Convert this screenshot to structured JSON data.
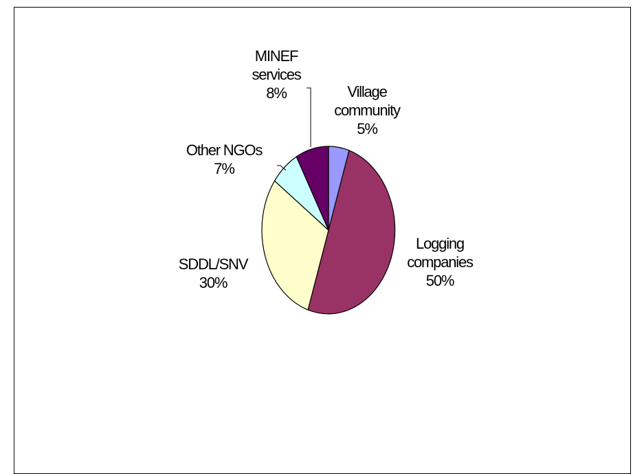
{
  "chart_data": {
    "type": "pie",
    "title": "",
    "slices": [
      {
        "label_lines": [
          "Village",
          "community"
        ],
        "percent_label": "5%",
        "value": 5,
        "color": "#9999FF"
      },
      {
        "label_lines": [
          "Logging",
          "companies"
        ],
        "percent_label": "50%",
        "value": 50,
        "color": "#993366"
      },
      {
        "label_lines": [
          "SDDL/SNV"
        ],
        "percent_label": "30%",
        "value": 30,
        "color": "#FFFFCC"
      },
      {
        "label_lines": [
          "Other NGOs"
        ],
        "percent_label": "7%",
        "value": 7,
        "color": "#CCFFFF"
      },
      {
        "label_lines": [
          "MINEF",
          "services"
        ],
        "percent_label": "8%",
        "value": 8,
        "color": "#660066"
      }
    ]
  }
}
